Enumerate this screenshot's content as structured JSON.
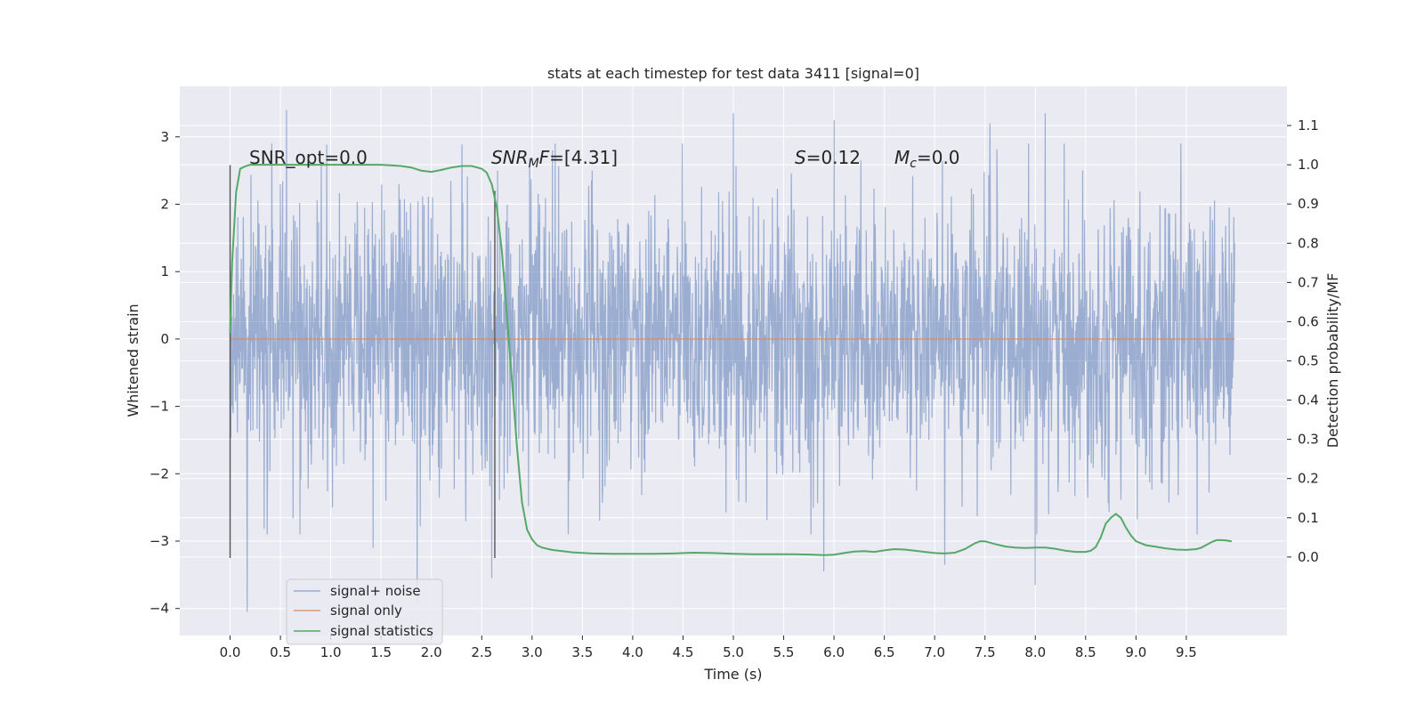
{
  "chart_data": {
    "type": "line",
    "title": "stats at each timestep for test data 3411 [signal=0]",
    "xlabel": "Time (s)",
    "ylabel": "Whitened strain",
    "ylabel_right": "Detection probability/MF",
    "xlim": [
      -0.5,
      10.5
    ],
    "ylim": [
      -4.4,
      3.75
    ],
    "ylim_right": [
      -0.2,
      1.2
    ],
    "x_ticks": [
      0.0,
      0.5,
      1.0,
      1.5,
      2.0,
      2.5,
      3.0,
      3.5,
      4.0,
      4.5,
      5.0,
      5.5,
      6.0,
      6.5,
      7.0,
      7.5,
      8.0,
      8.5,
      9.0,
      9.5
    ],
    "y_ticks": [
      -4,
      -3,
      -2,
      -1,
      0,
      1,
      2,
      3
    ],
    "y_ticks_right": [
      0.0,
      0.1,
      0.2,
      0.3,
      0.4,
      0.5,
      0.6,
      0.7,
      0.8,
      0.9,
      1.0,
      1.1
    ],
    "annotations": {
      "snr_opt": "SNR_opt=0.0",
      "snr_mf_main": "SNR",
      "snr_mf_sub": "M",
      "snr_mf_rest": "F=[4.31]",
      "s_main": "S",
      "s_rest": "=0.12",
      "mc_main": "M",
      "mc_sub": "c",
      "mc_rest": "=0.0"
    },
    "legend": {
      "position": "lower left",
      "entries": [
        "signal+ noise",
        "signal only",
        "signal statistics"
      ]
    },
    "colors": {
      "background": "#eaeaf2",
      "grid": "#ffffff",
      "signal_noise": "#4c72b0",
      "signal_only": "#dd8452",
      "statistics": "#55a868",
      "vline": "#555555"
    },
    "series": [
      {
        "name": "signal+ noise",
        "kind": "noise",
        "x_range": [
          0.0,
          9.98
        ],
        "envelope_typical": [
          -2.4,
          2.5
        ],
        "notable_extremes": [
          {
            "x": 0.17,
            "y": -4.05
          },
          {
            "x": 0.56,
            "y": 3.4
          },
          {
            "x": 1.42,
            "y": -3.1
          },
          {
            "x": 1.86,
            "y": -3.9
          },
          {
            "x": 2.6,
            "y": -3.55
          },
          {
            "x": 5.0,
            "y": 3.35
          },
          {
            "x": 5.9,
            "y": -3.45
          },
          {
            "x": 6.0,
            "y": 3.25
          },
          {
            "x": 7.1,
            "y": -3.35
          },
          {
            "x": 7.55,
            "y": 3.2
          },
          {
            "x": 8.0,
            "y": -3.65
          },
          {
            "x": 8.1,
            "y": 3.35
          }
        ]
      },
      {
        "name": "signal only",
        "x": [
          0.0,
          9.98
        ],
        "y": [
          0.0,
          0.0
        ]
      },
      {
        "name": "signal statistics",
        "axis": "right",
        "x": [
          0.0,
          0.02,
          0.06,
          0.1,
          0.15,
          0.2,
          0.3,
          0.5,
          1.0,
          1.5,
          1.7,
          1.8,
          1.9,
          2.0,
          2.1,
          2.2,
          2.3,
          2.4,
          2.5,
          2.55,
          2.6,
          2.65,
          2.7,
          2.75,
          2.8,
          2.85,
          2.9,
          2.95,
          3.0,
          3.05,
          3.1,
          3.2,
          3.4,
          3.6,
          3.8,
          4.0,
          4.2,
          4.4,
          4.6,
          4.8,
          5.0,
          5.2,
          5.4,
          5.6,
          5.8,
          5.9,
          6.0,
          6.1,
          6.2,
          6.3,
          6.4,
          6.5,
          6.6,
          6.7,
          6.8,
          6.9,
          7.0,
          7.1,
          7.2,
          7.3,
          7.4,
          7.45,
          7.5,
          7.6,
          7.7,
          7.8,
          7.9,
          8.0,
          8.1,
          8.2,
          8.3,
          8.4,
          8.5,
          8.55,
          8.6,
          8.65,
          8.7,
          8.75,
          8.8,
          8.85,
          8.9,
          8.95,
          9.0,
          9.1,
          9.2,
          9.3,
          9.4,
          9.5,
          9.6,
          9.65,
          9.7,
          9.75,
          9.8,
          9.85,
          9.9,
          9.95
        ],
        "y": [
          0.57,
          0.75,
          0.93,
          0.99,
          0.996,
          1.0,
          1.0,
          1.0,
          1.0,
          1.0,
          0.997,
          0.993,
          0.985,
          0.982,
          0.987,
          0.993,
          0.997,
          0.997,
          0.99,
          0.98,
          0.95,
          0.89,
          0.78,
          0.62,
          0.45,
          0.28,
          0.14,
          0.07,
          0.045,
          0.03,
          0.024,
          0.018,
          0.012,
          0.009,
          0.008,
          0.008,
          0.008,
          0.009,
          0.011,
          0.01,
          0.008,
          0.007,
          0.007,
          0.007,
          0.006,
          0.005,
          0.006,
          0.01,
          0.014,
          0.015,
          0.013,
          0.017,
          0.02,
          0.019,
          0.016,
          0.013,
          0.01,
          0.009,
          0.011,
          0.02,
          0.035,
          0.04,
          0.04,
          0.033,
          0.027,
          0.024,
          0.023,
          0.024,
          0.024,
          0.021,
          0.016,
          0.013,
          0.013,
          0.016,
          0.025,
          0.05,
          0.085,
          0.1,
          0.11,
          0.1,
          0.075,
          0.055,
          0.04,
          0.03,
          0.026,
          0.022,
          0.019,
          0.018,
          0.02,
          0.024,
          0.031,
          0.038,
          0.043,
          0.043,
          0.042,
          0.04
        ]
      }
    ],
    "vlines": [
      {
        "x": 0.0,
        "y_range": [
          -3.25,
          2.58
        ]
      },
      {
        "x": 2.63,
        "y_range": [
          -3.25,
          2.2
        ]
      }
    ]
  }
}
